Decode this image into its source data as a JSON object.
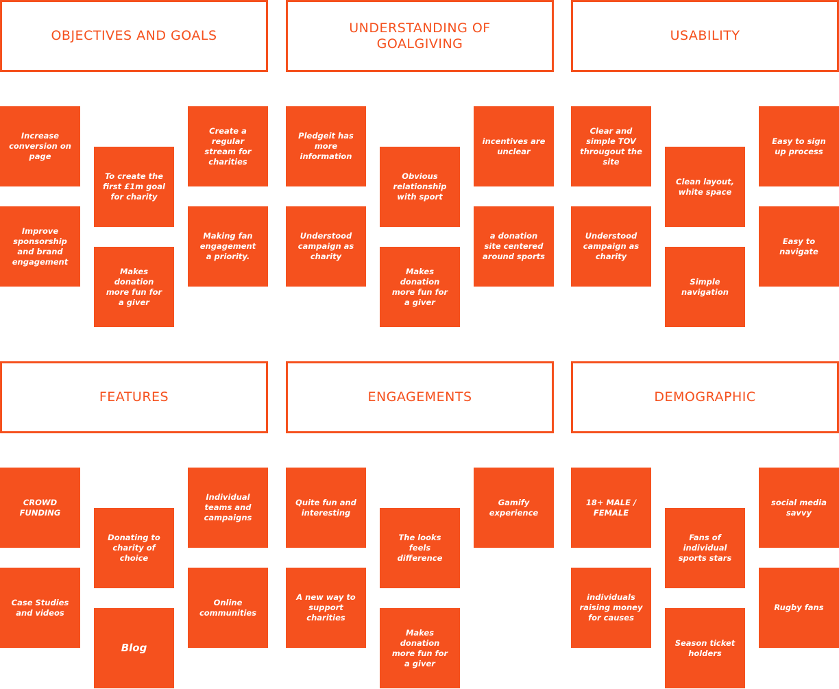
{
  "colors": {
    "accent": "#f5511e",
    "note_text": "#ffffff",
    "background": "#ffffff"
  },
  "sections": [
    {
      "title": "OBJECTIVES AND GOALS",
      "notes": [
        "Increase conversion on page",
        "Improve sponsorship and brand engagement",
        "To create the first £1m goal for charity",
        "Makes donation more fun for a giver",
        "Create a regular stream for charities",
        "Making fan engagement a priority."
      ]
    },
    {
      "title": "UNDERSTANDING OF GOALGIVING",
      "notes": [
        "Pledgeit has more information",
        "Understood campaign as charity",
        "Obvious relationship with sport",
        "Makes donation more fun for a giver",
        "incentives are unclear",
        "a donation site centered around sports"
      ]
    },
    {
      "title": "USABILITY",
      "notes": [
        "Clear and simple TOV througout the site",
        "Understood campaign as charity",
        "Clean layout, white space",
        "Simple navigation",
        "Easy to sign up process",
        "Easy to navigate"
      ]
    },
    {
      "title": "FEATURES",
      "notes": [
        "CROWD FUNDING",
        "Case Studies and videos",
        "Donating to charity of choice",
        "Blog",
        "Individual teams and campaigns",
        "Online communities"
      ]
    },
    {
      "title": "ENGAGEMENTS",
      "notes": [
        "Quite fun and interesting",
        "A new way to support charities",
        "The looks feels difference",
        "Makes donation more fun for a giver",
        "Gamify experience"
      ]
    },
    {
      "title": "DEMOGRAPHIC",
      "notes": [
        "18+ MALE / FEMALE",
        "individuals raising money for causes",
        "Fans of individual sports stars",
        "Season ticket holders",
        "social media savvy",
        "Rugby fans"
      ]
    }
  ]
}
